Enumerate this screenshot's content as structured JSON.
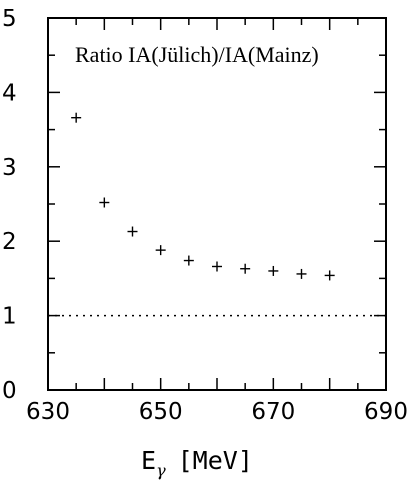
{
  "chart_data": {
    "type": "scatter",
    "title": "",
    "legend_text": "Ratio IA(Jülich)/IA(Mainz)",
    "legend_placement": "top-right",
    "xlabel": {
      "main": "E",
      "subscript": "γ",
      "unit": "[MeV]"
    },
    "ylabel": "",
    "xlim": [
      630,
      690
    ],
    "ylim": [
      0,
      5
    ],
    "x_ticks": [
      630,
      650,
      670,
      690
    ],
    "y_ticks": [
      0,
      1,
      2,
      3,
      4,
      5
    ],
    "grid": false,
    "marker": "+",
    "series": [
      {
        "x": [
          635,
          640,
          645,
          650,
          655,
          660,
          665,
          670,
          675,
          680
        ],
        "y": [
          3.66,
          2.52,
          2.13,
          1.88,
          1.74,
          1.66,
          1.63,
          1.6,
          1.56,
          1.54
        ]
      }
    ],
    "reference_line": {
      "y": 1,
      "style": "dotted"
    }
  }
}
